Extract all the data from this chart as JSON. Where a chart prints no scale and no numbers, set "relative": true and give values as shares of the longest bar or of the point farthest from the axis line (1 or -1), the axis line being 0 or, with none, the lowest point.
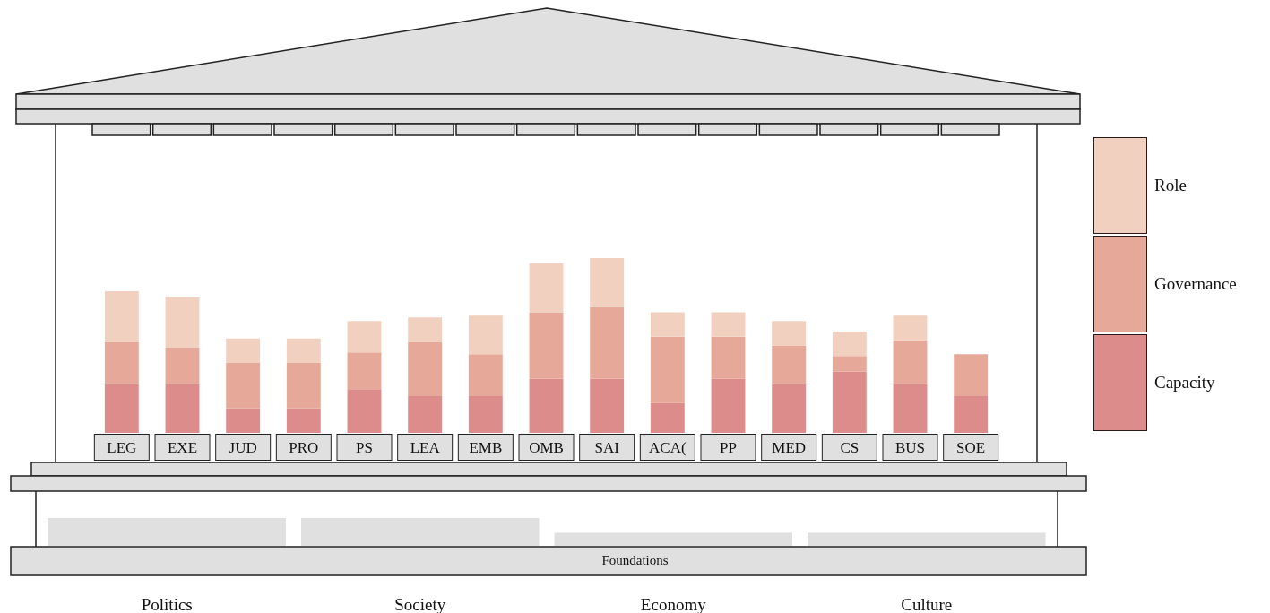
{
  "chart_data": [
    {
      "type": "bar",
      "stacked": true,
      "relative": true,
      "legend": "right",
      "categories": [
        "LEG",
        "EXE",
        "JUD",
        "PRO",
        "PS",
        "LEA",
        "EMB",
        "OMB",
        "SAI",
        "ACA(",
        "PP",
        "MED",
        "CS",
        "BUS",
        "SOE"
      ],
      "series": [
        {
          "name": "Capacity",
          "color": "#dd8c8c",
          "values": [
            0.28,
            0.28,
            0.14,
            0.14,
            0.25,
            0.21,
            0.21,
            0.31,
            0.31,
            0.17,
            0.31,
            0.28,
            0.35,
            0.28,
            0.21
          ]
        },
        {
          "name": "Governance",
          "color": "#e6a898",
          "values": [
            0.24,
            0.21,
            0.26,
            0.26,
            0.21,
            0.31,
            0.24,
            0.38,
            0.41,
            0.38,
            0.24,
            0.22,
            0.09,
            0.25,
            0.24
          ]
        },
        {
          "name": "Role",
          "color": "#f1d0c0",
          "values": [
            0.29,
            0.29,
            0.14,
            0.14,
            0.18,
            0.14,
            0.22,
            0.28,
            0.28,
            0.14,
            0.14,
            0.14,
            0.14,
            0.14,
            null
          ]
        }
      ]
    },
    {
      "type": "bar",
      "relative": true,
      "annotations": [
        "Foundations"
      ],
      "categories": [
        "Politics",
        "Society",
        "Economy",
        "Culture"
      ],
      "values": [
        1,
        1,
        0.47,
        0.47
      ],
      "color": "#e0e0e0"
    }
  ]
}
